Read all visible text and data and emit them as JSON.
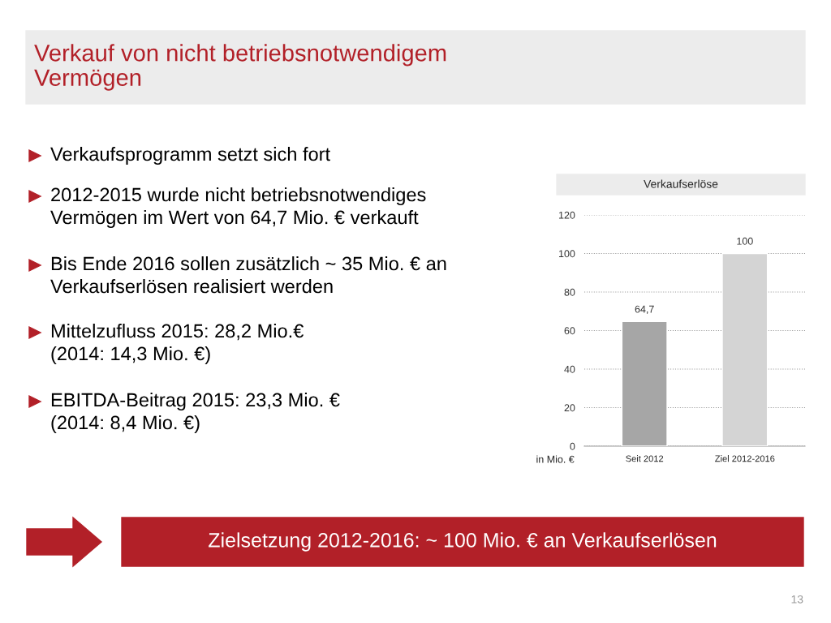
{
  "chart_data": {
    "type": "bar",
    "title": "Verkaufserlöse",
    "ylabel": "in Mio. €",
    "categories": [
      "Seit 2012",
      "Ziel 2012-2016"
    ],
    "values": [
      64.7,
      100
    ],
    "colors": [
      "#a6a6a6",
      "#d4d4d4"
    ],
    "value_labels": [
      "64,7",
      "100"
    ],
    "ylim": [
      0,
      120
    ],
    "yticks": [
      0,
      20,
      40,
      60,
      80,
      100,
      120
    ],
    "grid": "y",
    "legend": false,
    "annotations": [
      "Verkauf von nicht betriebsnotwendigem\nVermögen",
      "Verkaufsprogramm setzt sich fort",
      "2012-2015 wurde nicht betriebsnotwendiges\nVermögen im Wert von 64,7 Mio. € verkauft",
      "Bis Ende 2016 sollen zusätzlich ~ 35 Mio. € an\nVerkaufserlösen realisiert werden",
      "Mittelzufluss 2015: 28,2 Mio.€\n(2014: 14,3 Mio. €)",
      "EBITDA-Beitrag 2015: 23,3 Mio. €\n(2014: 8,4 Mio. €)",
      "Zielsetzung 2012-2016: ~ 100 Mio. € an Verkaufserlösen",
      "13"
    ]
  }
}
